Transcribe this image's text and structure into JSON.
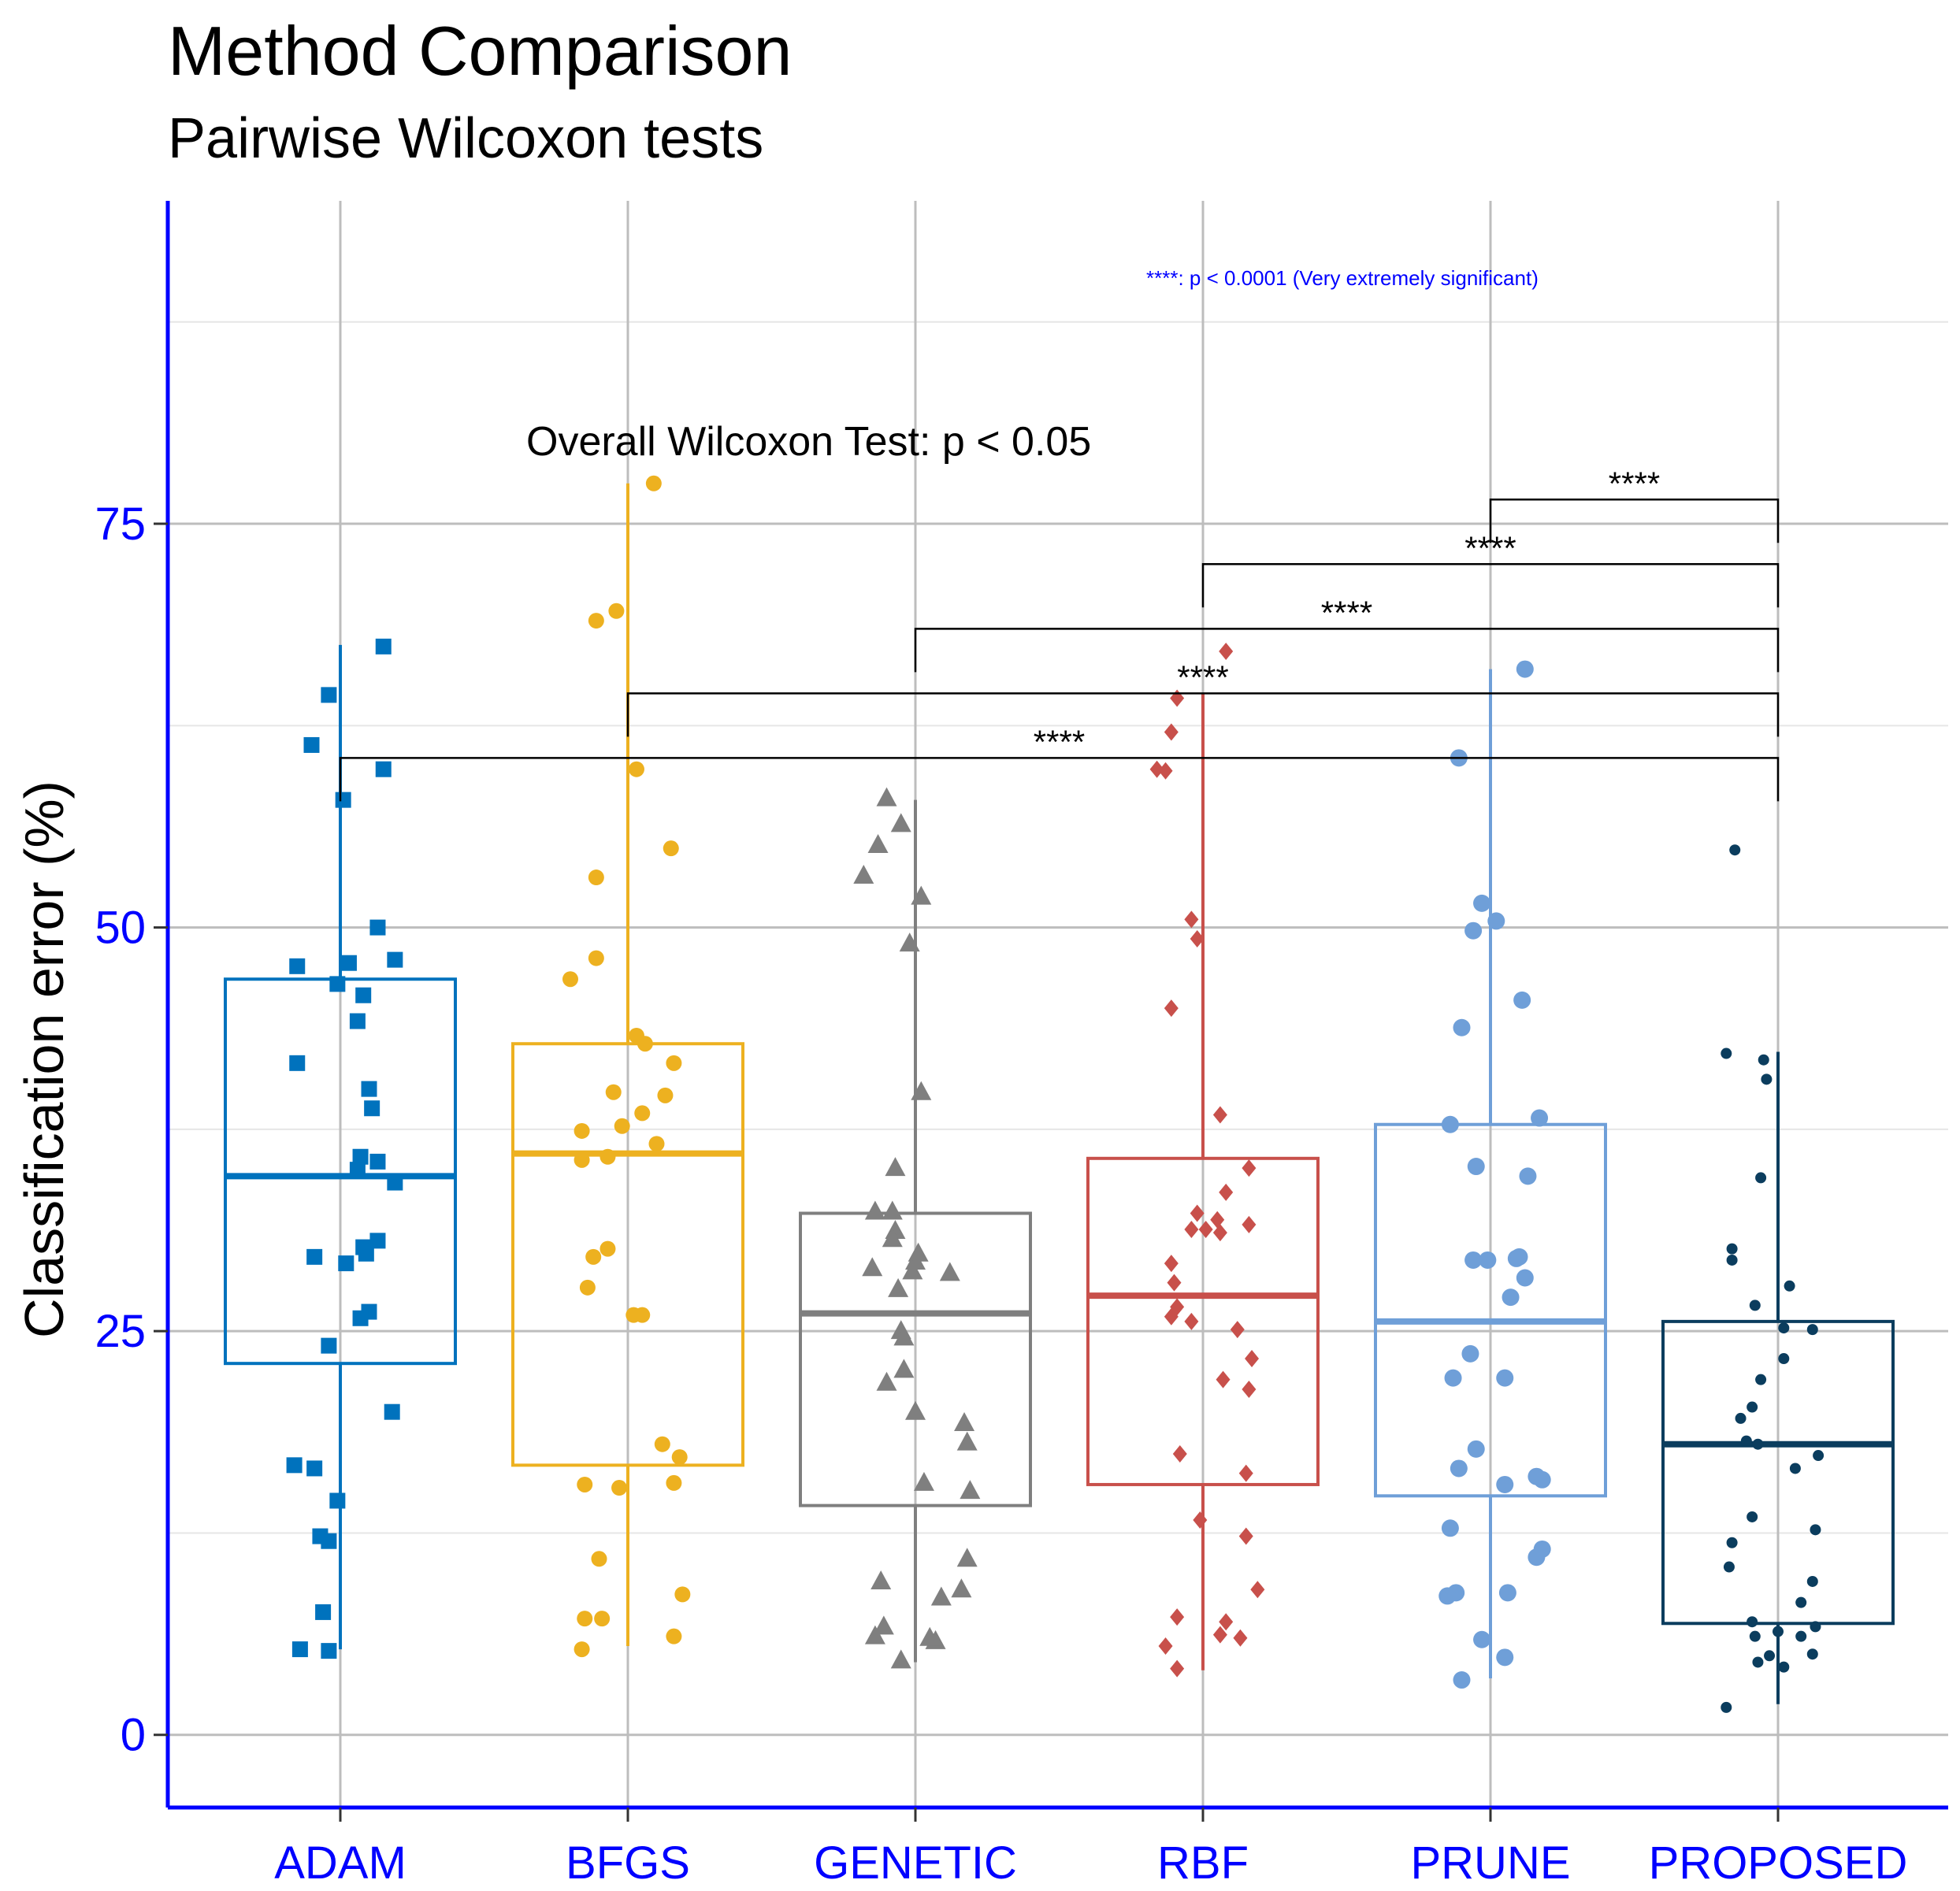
{
  "chart_data": {
    "type": "box",
    "title": "Method Comparison",
    "subtitle": "Pairwise Wilcoxon tests",
    "ylabel": "Classification error (%)",
    "xlabel": "",
    "ylim": [
      -4.5,
      95
    ],
    "yticks": [
      0,
      25,
      50,
      75
    ],
    "minor_gridlines": [
      12.5,
      37.5,
      62.5,
      87.5
    ],
    "grid": true,
    "legend": "none",
    "categories": [
      "ADAM",
      "BFGS",
      "GENETIC",
      "RBF",
      "PRUNE",
      "PROPOSED"
    ],
    "colors": {
      "ADAM": "#0072bd",
      "BFGS": "#edb120",
      "GENETIC": "#7f7f7f",
      "RBF": "#c8504b",
      "PRUNE": "#6f9fd8",
      "PROPOSED": "#0b3d5e",
      "axis": "#0000ff",
      "tick_label": "#0000ff",
      "grid_major": "#bdbdbd",
      "grid_minor": "#e6e6e6"
    },
    "series": [
      {
        "name": "ADAM",
        "marker": "square",
        "box": {
          "whisker_low": 5.3,
          "q1": 23.0,
          "median": 34.6,
          "q3": 46.8,
          "whisker_high": 67.5
        },
        "points": [
          [
            0.15,
            67.4
          ],
          [
            -0.04,
            64.4
          ],
          [
            -0.1,
            61.3
          ],
          [
            0.15,
            59.8
          ],
          [
            0.01,
            57.9
          ],
          [
            0.13,
            50.0
          ],
          [
            -0.15,
            47.6
          ],
          [
            0.03,
            47.8
          ],
          [
            0.19,
            48.0
          ],
          [
            -0.01,
            46.5
          ],
          [
            0.08,
            45.8
          ],
          [
            0.06,
            44.2
          ],
          [
            -0.15,
            41.6
          ],
          [
            0.1,
            40.0
          ],
          [
            0.11,
            38.8
          ],
          [
            0.07,
            35.8
          ],
          [
            0.13,
            35.5
          ],
          [
            0.06,
            35.0
          ],
          [
            0.19,
            34.2
          ],
          [
            0.13,
            30.6
          ],
          [
            0.08,
            30.2
          ],
          [
            0.09,
            29.8
          ],
          [
            -0.09,
            29.6
          ],
          [
            0.02,
            29.2
          ],
          [
            0.1,
            26.2
          ],
          [
            0.07,
            25.8
          ],
          [
            -0.04,
            24.1
          ],
          [
            0.18,
            20.0
          ],
          [
            -0.16,
            16.7
          ],
          [
            -0.09,
            16.5
          ],
          [
            -0.01,
            14.5
          ],
          [
            -0.07,
            12.3
          ],
          [
            -0.04,
            12.0
          ],
          [
            -0.06,
            7.6
          ],
          [
            -0.14,
            5.3
          ],
          [
            -0.04,
            5.2
          ]
        ]
      },
      {
        "name": "BFGS",
        "marker": "circle",
        "box": {
          "whisker_low": 5.5,
          "q1": 16.7,
          "median": 36.0,
          "q3": 42.8,
          "whisker_high": 77.5
        },
        "points": [
          [
            0.09,
            77.5
          ],
          [
            -0.04,
            69.6
          ],
          [
            -0.11,
            69.0
          ],
          [
            0.03,
            59.8
          ],
          [
            0.15,
            54.9
          ],
          [
            -0.11,
            53.1
          ],
          [
            -0.11,
            48.1
          ],
          [
            -0.2,
            46.8
          ],
          [
            0.03,
            43.3
          ],
          [
            0.06,
            42.8
          ],
          [
            0.16,
            41.6
          ],
          [
            -0.05,
            39.8
          ],
          [
            0.13,
            39.6
          ],
          [
            0.05,
            38.5
          ],
          [
            -0.16,
            37.4
          ],
          [
            -0.02,
            37.7
          ],
          [
            0.1,
            36.6
          ],
          [
            -0.16,
            35.6
          ],
          [
            -0.07,
            35.8
          ],
          [
            -0.07,
            30.1
          ],
          [
            -0.12,
            29.6
          ],
          [
            -0.14,
            27.7
          ],
          [
            0.02,
            26.0
          ],
          [
            0.05,
            26.0
          ],
          [
            0.12,
            18.0
          ],
          [
            0.18,
            17.2
          ],
          [
            -0.15,
            15.5
          ],
          [
            -0.03,
            15.3
          ],
          [
            0.16,
            15.6
          ],
          [
            -0.1,
            10.9
          ],
          [
            0.19,
            8.7
          ],
          [
            -0.15,
            7.2
          ],
          [
            -0.09,
            7.2
          ],
          [
            0.16,
            6.1
          ],
          [
            -0.16,
            5.3
          ]
        ]
      },
      {
        "name": "GENETIC",
        "marker": "triangle",
        "box": {
          "whisker_low": 4.5,
          "q1": 14.2,
          "median": 26.1,
          "q3": 32.3,
          "whisker_high": 57.9
        },
        "points": [
          [
            -0.1,
            58.0
          ],
          [
            -0.05,
            56.4
          ],
          [
            -0.13,
            55.1
          ],
          [
            -0.18,
            53.2
          ],
          [
            0.02,
            51.9
          ],
          [
            -0.02,
            49.0
          ],
          [
            0.02,
            39.8
          ],
          [
            -0.07,
            35.1
          ],
          [
            -0.14,
            32.4
          ],
          [
            -0.08,
            32.4
          ],
          [
            -0.07,
            31.2
          ],
          [
            -0.08,
            30.7
          ],
          [
            0.01,
            29.8
          ],
          [
            0,
            29.3
          ],
          [
            -0.01,
            28.7
          ],
          [
            0.12,
            28.6
          ],
          [
            -0.15,
            28.9
          ],
          [
            -0.06,
            27.6
          ],
          [
            -0.05,
            25.0
          ],
          [
            -0.04,
            24.6
          ],
          [
            -0.04,
            22.6
          ],
          [
            -0.1,
            21.8
          ],
          [
            0,
            20.0
          ],
          [
            0.17,
            19.3
          ],
          [
            0.18,
            18.1
          ],
          [
            0.03,
            15.6
          ],
          [
            0.19,
            15.1
          ],
          [
            -0.12,
            9.5
          ],
          [
            0.18,
            10.9
          ],
          [
            0.16,
            9.0
          ],
          [
            0.09,
            8.5
          ],
          [
            -0.11,
            6.7
          ],
          [
            -0.14,
            6.1
          ],
          [
            0.07,
            5.8
          ],
          [
            0.05,
            6.0
          ],
          [
            -0.05,
            4.6
          ]
        ]
      },
      {
        "name": "RBF",
        "marker": "diamond",
        "box": {
          "whisker_low": 4.0,
          "q1": 15.5,
          "median": 27.2,
          "q3": 35.7,
          "whisker_high": 64.5
        },
        "points": [
          [
            0.08,
            67.1
          ],
          [
            -0.09,
            64.2
          ],
          [
            -0.11,
            62.1
          ],
          [
            -0.16,
            59.8
          ],
          [
            -0.13,
            59.7
          ],
          [
            -0.04,
            50.5
          ],
          [
            -0.02,
            49.3
          ],
          [
            -0.11,
            45.0
          ],
          [
            0.06,
            38.4
          ],
          [
            0.16,
            35.1
          ],
          [
            0.08,
            33.6
          ],
          [
            -0.02,
            32.3
          ],
          [
            0.05,
            31.9
          ],
          [
            0.16,
            31.6
          ],
          [
            0.01,
            31.3
          ],
          [
            -0.04,
            31.3
          ],
          [
            0.06,
            31.1
          ],
          [
            -0.11,
            29.2
          ],
          [
            -0.1,
            28.0
          ],
          [
            -0.11,
            25.9
          ],
          [
            -0.09,
            26.5
          ],
          [
            -0.04,
            25.6
          ],
          [
            0.12,
            25.1
          ],
          [
            0.17,
            23.3
          ],
          [
            0.07,
            22.0
          ],
          [
            0.16,
            21.4
          ],
          [
            -0.08,
            17.4
          ],
          [
            0.15,
            16.2
          ],
          [
            -0.01,
            13.3
          ],
          [
            0.15,
            12.3
          ],
          [
            0.19,
            9.0
          ],
          [
            -0.09,
            7.3
          ],
          [
            0.08,
            7.0
          ],
          [
            0.06,
            6.2
          ],
          [
            0.13,
            6.0
          ],
          [
            -0.13,
            5.5
          ],
          [
            -0.09,
            4.1
          ]
        ]
      },
      {
        "name": "PRUNE",
        "marker": "circle-large",
        "box": {
          "whisker_low": 3.5,
          "q1": 14.8,
          "median": 25.6,
          "q3": 37.8,
          "whisker_high": 66.0
        },
        "points": [
          [
            0.12,
            66.0
          ],
          [
            -0.11,
            60.5
          ],
          [
            -0.03,
            51.5
          ],
          [
            -0.06,
            49.8
          ],
          [
            0.02,
            50.4
          ],
          [
            0.11,
            45.5
          ],
          [
            -0.1,
            43.8
          ],
          [
            -0.14,
            37.8
          ],
          [
            0.17,
            38.2
          ],
          [
            -0.05,
            35.2
          ],
          [
            0.13,
            34.6
          ],
          [
            -0.01,
            29.4
          ],
          [
            -0.06,
            29.4
          ],
          [
            0.09,
            29.5
          ],
          [
            0.1,
            29.6
          ],
          [
            0.12,
            28.3
          ],
          [
            0.07,
            27.1
          ],
          [
            -0.07,
            23.6
          ],
          [
            -0.13,
            22.1
          ],
          [
            0.05,
            22.1
          ],
          [
            -0.05,
            17.7
          ],
          [
            -0.11,
            16.5
          ],
          [
            0.05,
            15.5
          ],
          [
            0.18,
            15.8
          ],
          [
            0.16,
            16.0
          ],
          [
            -0.14,
            12.8
          ],
          [
            0.18,
            11.5
          ],
          [
            0.16,
            11.0
          ],
          [
            -0.15,
            8.6
          ],
          [
            -0.12,
            8.8
          ],
          [
            0.06,
            8.8
          ],
          [
            -0.03,
            5.9
          ],
          [
            0.05,
            4.8
          ],
          [
            -0.1,
            3.4
          ]
        ]
      },
      {
        "name": "PROPOSED",
        "marker": "dot",
        "box": {
          "whisker_low": 1.9,
          "q1": 6.9,
          "median": 18.0,
          "q3": 25.6,
          "whisker_high": 42.3
        },
        "points": [
          [
            -0.15,
            54.8
          ],
          [
            -0.18,
            42.2
          ],
          [
            -0.05,
            41.8
          ],
          [
            -0.04,
            40.6
          ],
          [
            -0.06,
            34.5
          ],
          [
            -0.16,
            30.1
          ],
          [
            -0.16,
            29.4
          ],
          [
            0.04,
            27.8
          ],
          [
            -0.08,
            26.6
          ],
          [
            0.02,
            25.2
          ],
          [
            0.12,
            25.1
          ],
          [
            0.02,
            23.3
          ],
          [
            -0.06,
            22.0
          ],
          [
            -0.09,
            20.3
          ],
          [
            -0.13,
            19.6
          ],
          [
            -0.11,
            18.2
          ],
          [
            -0.07,
            18.0
          ],
          [
            0.14,
            17.3
          ],
          [
            0.06,
            16.5
          ],
          [
            -0.09,
            13.5
          ],
          [
            0.13,
            12.7
          ],
          [
            -0.16,
            11.9
          ],
          [
            0.12,
            9.5
          ],
          [
            -0.17,
            10.4
          ],
          [
            0.08,
            8.2
          ],
          [
            -0.09,
            7.0
          ],
          [
            0.13,
            6.7
          ],
          [
            0,
            6.4
          ],
          [
            -0.08,
            6.1
          ],
          [
            0.08,
            6.1
          ],
          [
            -0.03,
            4.9
          ],
          [
            0.12,
            5.0
          ],
          [
            0.02,
            4.2
          ],
          [
            -0.07,
            4.5
          ],
          [
            -0.18,
            1.7
          ]
        ]
      }
    ],
    "comparisons": [
      {
        "group1": "ADAM",
        "group2": "PROPOSED",
        "label": "****",
        "y": 60.5
      },
      {
        "group1": "BFGS",
        "group2": "PROPOSED",
        "label": "****",
        "y": 64.5
      },
      {
        "group1": "GENETIC",
        "group2": "PROPOSED",
        "label": "****",
        "y": 68.5
      },
      {
        "group1": "RBF",
        "group2": "PROPOSED",
        "label": "****",
        "y": 72.5
      },
      {
        "group1": "PRUNE",
        "group2": "PROPOSED",
        "label": "****",
        "y": 76.5
      }
    ],
    "annotations": {
      "overall_test": "Overall Wilcoxon Test: p < 0.05",
      "significance_legend": "****: p < 0.0001 (Very extremely significant)"
    }
  }
}
